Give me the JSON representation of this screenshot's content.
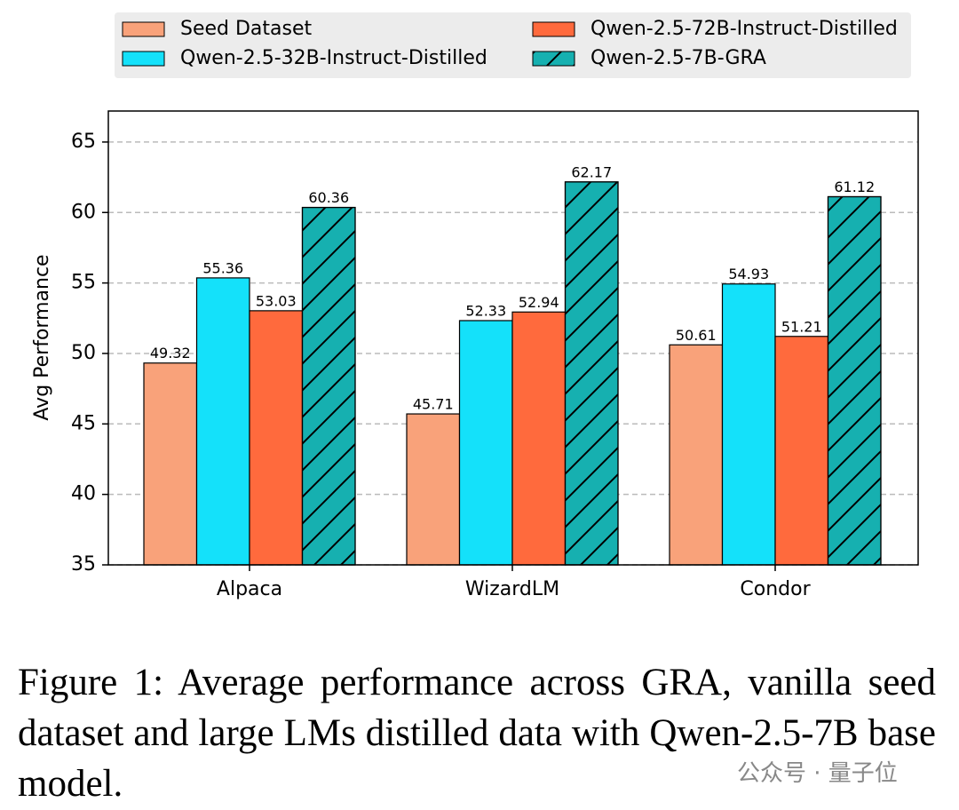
{
  "chart_data": {
    "type": "bar",
    "y_label": "Avg Performance",
    "categories": [
      "Alpaca",
      "WizardLM",
      "Condor"
    ],
    "series": [
      {
        "name": "Seed Dataset",
        "color": "#f9a27a",
        "values": [
          49.32,
          45.71,
          50.61
        ]
      },
      {
        "name": "Qwen-2.5-32B-Instruct-Distilled",
        "color": "#14e1fa",
        "values": [
          55.36,
          52.33,
          54.93
        ]
      },
      {
        "name": "Qwen-2.5-72B-Instruct-Distilled",
        "color": "#ff6a3d",
        "values": [
          53.03,
          52.94,
          51.21
        ]
      },
      {
        "name": "Qwen-2.5-7B-GRA",
        "color": "#16b0b0",
        "hatch": "/",
        "values": [
          60.36,
          62.17,
          61.12
        ]
      }
    ],
    "ylim": [
      35,
      67.2
    ],
    "yticks": [
      35,
      40,
      45,
      50,
      55,
      60,
      65
    ],
    "grid": true,
    "legend": "top",
    "caption": "Figure 1: Average performance across GRA, vanilla seed dataset and large LMs distilled data with Qwen-2.5-7B base model.",
    "watermark": "公众号 · 量子位"
  }
}
